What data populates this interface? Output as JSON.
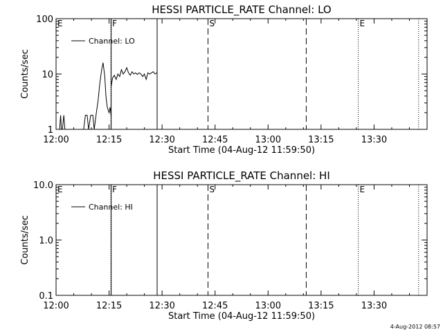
{
  "chart_data": [
    {
      "type": "line",
      "title": "HESSI PARTICLE_RATE Channel: LO",
      "xlabel": "Start Time (04-Aug-12 11:59:50)",
      "ylabel": "Counts/sec",
      "yscale": "log",
      "xlim_min": [
        0,
        105
      ],
      "ylim": [
        1,
        100
      ],
      "xticks": [
        {
          "min": 0,
          "label": "12:00"
        },
        {
          "min": 15,
          "label": "12:15"
        },
        {
          "min": 30,
          "label": "12:30"
        },
        {
          "min": 45,
          "label": "12:45"
        },
        {
          "min": 60,
          "label": "13:00"
        },
        {
          "min": 75,
          "label": "13:15"
        },
        {
          "min": 90,
          "label": "13:30"
        }
      ],
      "yticks": [
        {
          "value": 1,
          "label": "1"
        },
        {
          "value": 10,
          "label": "10"
        },
        {
          "value": 100,
          "label": "100"
        }
      ],
      "legend": {
        "label": "Channel: LO",
        "position": "top-left"
      },
      "markers": [
        {
          "min": 0.0,
          "style": "dotted",
          "label": "E"
        },
        {
          "min": 15.5,
          "style": "dotted",
          "label": "F"
        },
        {
          "min": 15.6,
          "style": "solid",
          "label": ""
        },
        {
          "min": 28.6,
          "style": "solid",
          "label": ""
        },
        {
          "min": 43.0,
          "style": "dashed",
          "label": "S"
        },
        {
          "min": 70.8,
          "style": "dashed",
          "label": ""
        },
        {
          "min": 85.5,
          "style": "dotted",
          "label": "E"
        },
        {
          "min": 102.6,
          "style": "dotted",
          "label": ""
        }
      ],
      "series": [
        {
          "segments": [
            {
              "x": [
                1.0,
                1.3,
                1.5,
                1.8,
                2.2,
                2.5,
                3.0
              ],
              "y": [
                1.0,
                1.8,
                1.0,
                1.0,
                1.8,
                1.0,
                1.0
              ]
            },
            {
              "x": [
                7.8,
                8.3,
                8.8,
                9.2,
                9.8,
                10.4,
                10.8,
                11.4,
                11.9,
                12.4,
                12.9,
                13.3,
                13.8,
                14.1,
                14.5,
                15.0,
                15.3,
                15.6
              ],
              "y": [
                1.0,
                1.8,
                1.8,
                1.0,
                1.8,
                1.8,
                1.0,
                2.0,
                3.3,
                7.0,
                12.0,
                16.0,
                9.0,
                4.0,
                2.5,
                2.0,
                2.5,
                1.7
              ]
            },
            {
              "x": [
                15.6,
                16.0,
                16.5,
                17.0,
                17.5,
                18.0,
                18.5,
                19.0,
                19.5,
                20.0,
                20.5,
                21.0,
                21.5,
                22.0,
                22.5,
                23.0,
                23.5,
                24.0,
                24.5,
                25.0,
                25.5,
                26.0,
                26.5,
                27.0,
                27.5,
                28.0,
                28.5
              ],
              "y": [
                6.0,
                8.5,
                9.5,
                8.0,
                10.0,
                9.0,
                12.0,
                10.0,
                11.0,
                13.0,
                10.5,
                9.5,
                11.0,
                10.0,
                10.5,
                9.8,
                10.5,
                10.0,
                9.0,
                10.0,
                8.0,
                10.5,
                10.0,
                10.5,
                11.0,
                10.0,
                10.5
              ]
            }
          ]
        }
      ]
    },
    {
      "type": "line",
      "title": "HESSI PARTICLE_RATE Channel: HI",
      "xlabel": "Start Time (04-Aug-12 11:59:50)",
      "ylabel": "Counts/sec",
      "yscale": "log",
      "xlim_min": [
        0,
        105
      ],
      "ylim": [
        0.1,
        10
      ],
      "xticks": [
        {
          "min": 0,
          "label": "12:00"
        },
        {
          "min": 15,
          "label": "12:15"
        },
        {
          "min": 30,
          "label": "12:30"
        },
        {
          "min": 45,
          "label": "12:45"
        },
        {
          "min": 60,
          "label": "13:00"
        },
        {
          "min": 75,
          "label": "13:15"
        },
        {
          "min": 90,
          "label": "13:30"
        }
      ],
      "yticks": [
        {
          "value": 0.1,
          "label": "0.1"
        },
        {
          "value": 1,
          "label": "1.0"
        },
        {
          "value": 10,
          "label": "10.0"
        }
      ],
      "legend": {
        "label": "Channel: HI",
        "position": "top-left"
      },
      "markers": [
        {
          "min": 0.0,
          "style": "dotted",
          "label": "E"
        },
        {
          "min": 15.5,
          "style": "dotted",
          "label": "F"
        },
        {
          "min": 15.6,
          "style": "solid",
          "label": ""
        },
        {
          "min": 28.6,
          "style": "solid",
          "label": ""
        },
        {
          "min": 43.0,
          "style": "dashed",
          "label": "S"
        },
        {
          "min": 70.8,
          "style": "dashed",
          "label": ""
        },
        {
          "min": 85.5,
          "style": "dotted",
          "label": "E"
        },
        {
          "min": 102.6,
          "style": "dotted",
          "label": ""
        }
      ],
      "series": [
        {
          "segments": []
        }
      ]
    }
  ],
  "footer": {
    "timestamp": "4-Aug-2012 08:57"
  }
}
